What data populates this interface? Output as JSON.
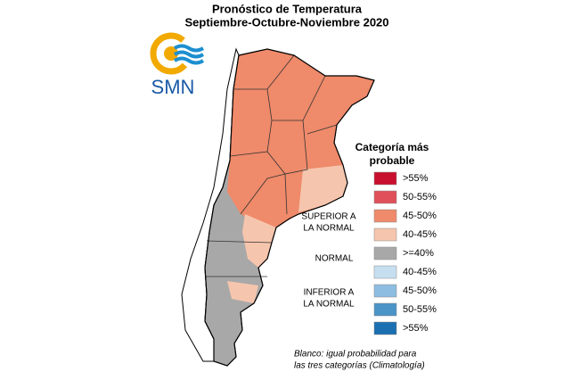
{
  "title": [
    "Pronóstico de Temperatura",
    "Septiembre-Octubre-Noviembre 2020"
  ],
  "logo": "SMN",
  "legend": {
    "title": [
      "Categoría más",
      "probable"
    ],
    "items": [
      {
        "label": ">55%",
        "color": "#c8102e"
      },
      {
        "label": "50-55%",
        "color": "#e0505a"
      },
      {
        "label": "45-50%",
        "color": "#ef8a6a"
      },
      {
        "label": "40-45%",
        "color": "#f6c5ad"
      },
      {
        "label": ">=40%",
        "color": "#a8a8a8"
      },
      {
        "label": "40-45%",
        "color": "#c6dff0"
      },
      {
        "label": "45-50%",
        "color": "#8dbde0"
      },
      {
        "label": "50-55%",
        "color": "#4a94c8"
      },
      {
        "label": ">55%",
        "color": "#1a6fb0"
      }
    ],
    "groups": [
      [
        "SUPERIOR A",
        "LA NORMAL"
      ],
      [
        "NORMAL"
      ],
      [
        "INFERIOR A",
        "LA NORMAL"
      ]
    ]
  },
  "footnote": [
    "Blanco: igual probabilidad para",
    "las tres categorías (Climatología)"
  ]
}
